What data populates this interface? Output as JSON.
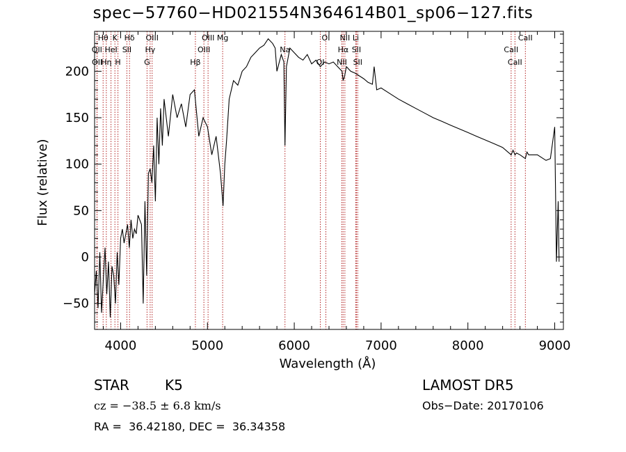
{
  "title": "spec−57760−HD021554N364614B01_sp06−127.fits",
  "info": {
    "class_label": "STAR",
    "subclass_label": "K5",
    "survey": "LAMOST DR5",
    "cz_line": "cz = −38.5 ± 6.8 km/s",
    "obs_date": "Obs−Date: 20170106",
    "coords": "RA =  36.42180, DEC =  36.34358"
  },
  "colors": {
    "line_marker": "#b22222",
    "spectrum": "#000000"
  },
  "chart_data": {
    "type": "line",
    "xlabel": "Wavelength (Å)",
    "ylabel": "Flux (relative)",
    "xlim": [
      3700,
      9100
    ],
    "ylim": [
      -78,
      243
    ],
    "xticks": [
      4000,
      5000,
      6000,
      7000,
      8000,
      9000
    ],
    "yticks": [
      -50,
      0,
      50,
      100,
      150,
      200
    ],
    "series": [
      {
        "x": [
          3700,
          3720,
          3740,
          3760,
          3780,
          3800,
          3820,
          3840,
          3860,
          3880,
          3900,
          3920,
          3940,
          3960,
          3980,
          4000,
          4020,
          4040,
          4060,
          4080,
          4100,
          4120,
          4140,
          4160,
          4180,
          4200,
          4220,
          4240,
          4260,
          4280,
          4300,
          4320,
          4340,
          4360,
          4380,
          4400,
          4420,
          4440,
          4460,
          4480,
          4500,
          4550,
          4600,
          4650,
          4700,
          4750,
          4800,
          4850,
          4900,
          4950,
          5000,
          5050,
          5100,
          5150,
          5180,
          5200,
          5220,
          5250,
          5300,
          5350,
          5400,
          5450,
          5500,
          5550,
          5600,
          5650,
          5700,
          5750,
          5780,
          5800,
          5850,
          5880,
          5893,
          5910,
          5950,
          6000,
          6050,
          6100,
          6150,
          6200,
          6250,
          6300,
          6350,
          6400,
          6450,
          6500,
          6550,
          6563,
          6580,
          6600,
          6650,
          6700,
          6750,
          6800,
          6850,
          6900,
          6920,
          6950,
          7000,
          7100,
          7200,
          7300,
          7400,
          7500,
          7600,
          7700,
          7800,
          7900,
          8000,
          8100,
          8200,
          8300,
          8400,
          8498,
          8520,
          8542,
          8560,
          8600,
          8662,
          8680,
          8700,
          8800,
          8900,
          8950,
          9000,
          9020,
          9040,
          9050
        ],
        "values": [
          -40,
          -15,
          -55,
          5,
          -60,
          -25,
          10,
          -40,
          -5,
          -65,
          -10,
          -20,
          -50,
          5,
          -30,
          20,
          30,
          15,
          25,
          35,
          10,
          40,
          20,
          30,
          25,
          45,
          40,
          35,
          -50,
          60,
          -20,
          90,
          95,
          80,
          120,
          60,
          150,
          100,
          160,
          120,
          170,
          130,
          175,
          150,
          165,
          140,
          175,
          180,
          130,
          150,
          140,
          110,
          130,
          90,
          55,
          100,
          125,
          170,
          190,
          185,
          200,
          205,
          215,
          220,
          225,
          228,
          235,
          230,
          225,
          200,
          218,
          210,
          120,
          205,
          225,
          220,
          215,
          212,
          218,
          208,
          212,
          205,
          210,
          208,
          210,
          205,
          200,
          190,
          195,
          205,
          200,
          198,
          195,
          192,
          188,
          186,
          205,
          180,
          182,
          176,
          170,
          165,
          160,
          155,
          150,
          146,
          142,
          138,
          134,
          130,
          126,
          122,
          118,
          110,
          115,
          110,
          112,
          110,
          106,
          113,
          110,
          110,
          104,
          106,
          140,
          -5,
          60,
          -5
        ]
      }
    ],
    "annotations": [
      {
        "label": "Hθ",
        "wl": 3798
      },
      {
        "label": "OII",
        "wl": 3727
      },
      {
        "label": "OII",
        "wl": 3729
      },
      {
        "label": "K",
        "wl": 3934
      },
      {
        "label": "HeI",
        "wl": 3889
      },
      {
        "label": "Hη",
        "wl": 3835
      },
      {
        "label": "Hδ",
        "wl": 4102
      },
      {
        "label": "SII",
        "wl": 4072
      },
      {
        "label": "H",
        "wl": 3969
      },
      {
        "label": "OIII",
        "wl": 4363
      },
      {
        "label": "Hγ",
        "wl": 4340
      },
      {
        "label": "G",
        "wl": 4304
      },
      {
        "label": "OIII",
        "wl": 5007
      },
      {
        "label": "OIII",
        "wl": 4959
      },
      {
        "label": "Hβ",
        "wl": 4861
      },
      {
        "label": "Mg",
        "wl": 5175
      },
      {
        "label": "Na",
        "wl": 5893
      },
      {
        "label": "OI",
        "wl": 6300
      },
      {
        "label": "OI",
        "wl": 6364
      },
      {
        "label": "Hα",
        "wl": 6563
      },
      {
        "label": "NII",
        "wl": 6548
      },
      {
        "label": "NII",
        "wl": 6583
      },
      {
        "label": "SII",
        "wl": 6716
      },
      {
        "label": "SII",
        "wl": 6731
      },
      {
        "label": "Li",
        "wl": 6708
      },
      {
        "label": "CaII",
        "wl": 8498
      },
      {
        "label": "CaII",
        "wl": 8542
      },
      {
        "label": "CaII",
        "wl": 8662
      }
    ]
  }
}
